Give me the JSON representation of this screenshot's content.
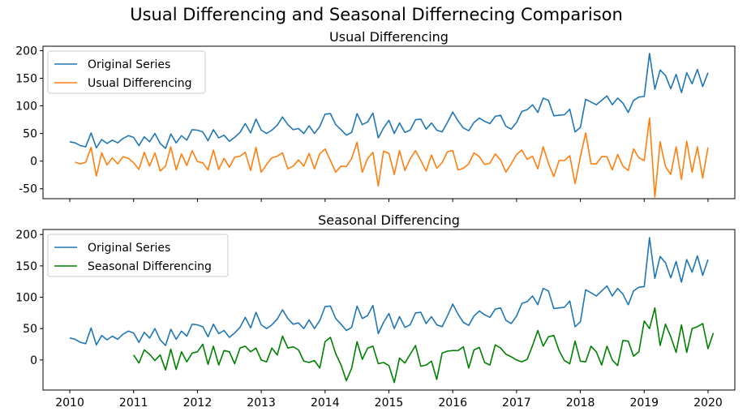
{
  "figure": {
    "title": "Usual Differencing and Seasonal Differnecing Comparison"
  },
  "chart_data": [
    {
      "type": "line",
      "title": "Usual Differencing",
      "xlabel": "",
      "ylabel": "",
      "xlim": [
        2009.58,
        2020.42
      ],
      "ylim": [
        -68,
        208
      ],
      "yticks": [
        -50,
        0,
        50,
        100,
        150,
        200
      ],
      "xticks": [],
      "grid": false,
      "legend_position": "upper-left",
      "series": [
        {
          "name": "Original Series",
          "color": "#1f77b4",
          "x_start": 2010.0,
          "x_step": 0.0833333,
          "values": [
            35,
            33,
            28,
            26,
            51,
            24,
            39,
            32,
            38,
            33,
            41,
            46,
            43,
            28,
            44,
            35,
            50,
            32,
            23,
            49,
            33,
            46,
            38,
            57,
            56,
            53,
            37,
            57,
            42,
            47,
            36,
            43,
            52,
            68,
            51,
            76,
            56,
            50,
            56,
            65,
            80,
            66,
            57,
            59,
            50,
            64,
            50,
            63,
            85,
            86,
            66,
            57,
            47,
            52,
            86,
            66,
            71,
            87,
            42,
            60,
            74,
            50,
            69,
            52,
            56,
            75,
            76,
            58,
            69,
            56,
            53,
            70,
            89,
            73,
            60,
            55,
            70,
            78,
            72,
            68,
            81,
            83,
            63,
            58,
            70,
            90,
            93,
            102,
            88,
            114,
            110,
            82,
            83,
            84,
            94,
            53,
            61,
            112,
            107,
            102,
            110,
            118,
            102,
            114,
            105,
            88,
            110,
            116,
            117,
            195,
            130,
            165,
            155,
            131,
            157,
            124,
            160,
            140,
            166,
            135,
            160
          ]
        },
        {
          "name": "Usual Differencing",
          "color": "#ff7f0e",
          "x_start": 2010.0833,
          "x_step": 0.0833333,
          "values": [
            -2,
            -5,
            -2,
            25,
            -27,
            15,
            -7,
            6,
            -5,
            8,
            5,
            -3,
            -15,
            16,
            -9,
            15,
            -18,
            -9,
            26,
            -16,
            13,
            -8,
            19,
            -1,
            -3,
            -16,
            20,
            -15,
            5,
            -11,
            7,
            9,
            16,
            -17,
            25,
            -20,
            -6,
            6,
            9,
            15,
            -14,
            -9,
            2,
            -9,
            14,
            -14,
            13,
            22,
            1,
            -20,
            -9,
            -10,
            5,
            34,
            -20,
            5,
            16,
            -45,
            18,
            14,
            -24,
            19,
            -17,
            4,
            19,
            1,
            -18,
            11,
            -13,
            -3,
            17,
            19,
            -16,
            -13,
            -5,
            15,
            8,
            -6,
            -4,
            13,
            2,
            -20,
            -5,
            12,
            20,
            3,
            9,
            -14,
            26,
            -4,
            -28,
            1,
            1,
            10,
            -41,
            8,
            51,
            -5,
            -5,
            8,
            8,
            -16,
            12,
            -9,
            -17,
            22,
            6,
            1,
            78,
            -65,
            35,
            -10,
            -24,
            26,
            -33,
            36,
            -20,
            26,
            -31,
            25
          ]
        }
      ]
    },
    {
      "type": "line",
      "title": "Seasonal Differencing",
      "xlabel": "",
      "ylabel": "",
      "xlim": [
        2009.58,
        2020.42
      ],
      "ylim": [
        -48,
        208
      ],
      "yticks": [
        0,
        50,
        100,
        150,
        200
      ],
      "xticks": [
        "2010",
        "2011",
        "2012",
        "2013",
        "2014",
        "2015",
        "2016",
        "2017",
        "2018",
        "2019",
        "2020"
      ],
      "grid": false,
      "legend_position": "upper-left",
      "series": [
        {
          "name": "Original Series",
          "color": "#1f77b4",
          "x_start": 2010.0,
          "x_step": 0.0833333,
          "values": [
            35,
            33,
            28,
            26,
            51,
            24,
            39,
            32,
            38,
            33,
            41,
            46,
            43,
            28,
            44,
            35,
            50,
            32,
            23,
            49,
            33,
            46,
            38,
            57,
            56,
            53,
            37,
            57,
            42,
            47,
            36,
            43,
            52,
            68,
            51,
            76,
            56,
            50,
            56,
            65,
            80,
            66,
            57,
            59,
            50,
            64,
            50,
            63,
            85,
            86,
            66,
            57,
            47,
            52,
            86,
            66,
            71,
            87,
            42,
            60,
            74,
            50,
            69,
            52,
            56,
            75,
            76,
            58,
            69,
            56,
            53,
            70,
            89,
            73,
            60,
            55,
            70,
            78,
            72,
            68,
            81,
            83,
            63,
            58,
            70,
            90,
            93,
            102,
            88,
            114,
            110,
            82,
            83,
            84,
            94,
            53,
            61,
            112,
            107,
            102,
            110,
            118,
            102,
            114,
            105,
            88,
            110,
            116,
            117,
            195,
            130,
            165,
            155,
            131,
            157,
            124,
            160,
            140,
            166,
            135,
            160
          ]
        },
        {
          "name": "Seasonal Differencing",
          "color": "#008000",
          "x_start": 2011.0,
          "x_step": 0.0833333,
          "values": [
            8,
            -5,
            16,
            9,
            -1,
            8,
            -16,
            17,
            -15,
            13,
            -3,
            11,
            13,
            25,
            -7,
            22,
            -8,
            15,
            13,
            -6,
            19,
            22,
            13,
            19,
            0,
            -3,
            19,
            8,
            38,
            19,
            21,
            16,
            -2,
            -4,
            -1,
            -13,
            29,
            36,
            10,
            -8,
            -33,
            -13,
            29,
            1,
            19,
            22,
            -6,
            -4,
            -9,
            -36,
            3,
            -5,
            9,
            23,
            -10,
            -8,
            -2,
            -31,
            11,
            14,
            15,
            15,
            21,
            -13,
            16,
            20,
            -4,
            -8,
            24,
            19,
            9,
            5,
            0,
            -3,
            1,
            23,
            47,
            22,
            37,
            39,
            15,
            -1,
            -6,
            30,
            -2,
            -3,
            22,
            13,
            -8,
            22,
            0,
            -9,
            31,
            30,
            6,
            13,
            62,
            50,
            83,
            23,
            57,
            37,
            12,
            56,
            12,
            50,
            53,
            58,
            18,
            43
          ]
        }
      ]
    }
  ]
}
